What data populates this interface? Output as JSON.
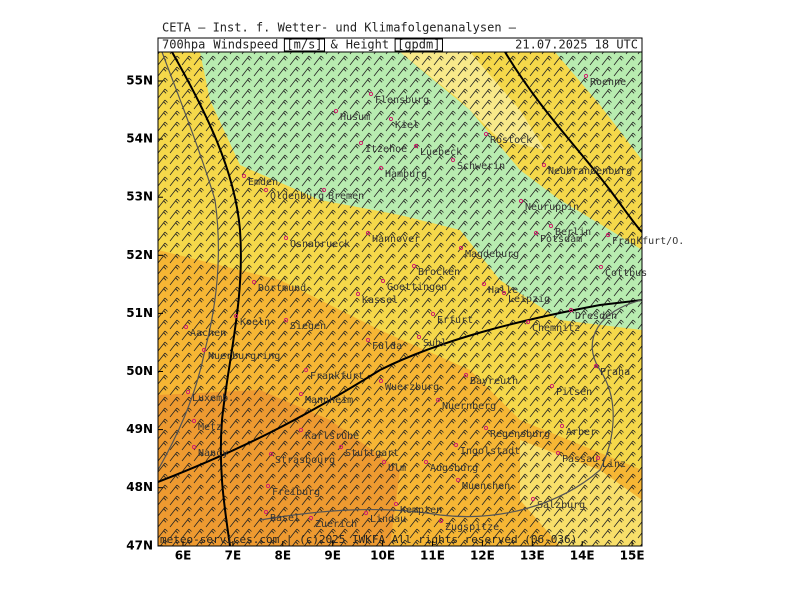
{
  "header": {
    "institute": "CETA – Inst. f. Wetter- und Klimafolgenanalysen –",
    "fields": [
      "700hpa",
      "Windspeed",
      "[m/s]",
      "&",
      "Height",
      "[gpdm]"
    ],
    "valid_time": "21.07.2025 18 UTC"
  },
  "map": {
    "lat_labels": [
      "55N",
      "54N",
      "53N",
      "52N",
      "51N",
      "50N",
      "49N",
      "48N",
      "47N"
    ],
    "lon_labels": [
      "6E",
      "7E",
      "8E",
      "9E",
      "10E",
      "11E",
      "12E",
      "13E",
      "14E",
      "15E"
    ],
    "cities": [
      "Flensburg",
      "Husum",
      "Kiel",
      "Itzehoe",
      "Luebeck",
      "Rostock",
      "Schwerin",
      "Neubrandenburg",
      "Hamburg",
      "Emden",
      "Oldenburg",
      "Bremen",
      "Neuruppin",
      "Berlin",
      "Potsdam",
      "Frankfurt/O.",
      "Osnabrueck",
      "Hannover",
      "Magdeburg",
      "Brocken",
      "Cottbus",
      "Dortmund",
      "Goettingen",
      "Halle",
      "Leipzig",
      "Kassel",
      "Dresden",
      "Koeln",
      "Siegen",
      "Erfurt",
      "Chemnitz",
      "Aachen",
      "Fulda",
      "Nuerburgring",
      "Suhl",
      "Frankfurt",
      "Bayreuth",
      "Wuerzburg",
      "Pilsen",
      "Praha",
      "Luxemb.",
      "Mannheim",
      "Nuernberg",
      "Karlsruhe",
      "Metz",
      "Regensburg",
      "Arber",
      "Ingolstadt",
      "Nancy",
      "Stuttgart",
      "Passau",
      "Linz",
      "Strasbourg",
      "Ulm",
      "Augsburg",
      "Freiburg",
      "Muenchen",
      "Salzburg",
      "Kempten",
      "Basel",
      "Zuerich",
      "Lindau",
      "Zugspitze",
      "Roenne"
    ]
  },
  "footer": {
    "copyright": "meteo-services.com | (c)2025 IWKFA All rights reserved (06-036)"
  }
}
